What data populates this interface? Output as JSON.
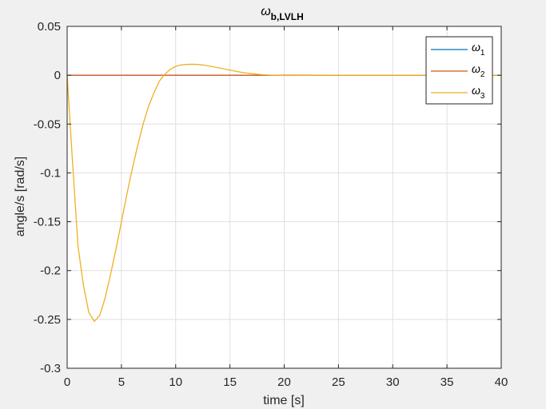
{
  "chart_data": {
    "type": "line",
    "title": "ω",
    "title_subscript": "b,LVLH",
    "xlabel": "time [s]",
    "ylabel": "angle/s [rad/s]",
    "xlim": [
      0,
      40
    ],
    "ylim": [
      -0.3,
      0.05
    ],
    "xticks": [
      0,
      5,
      10,
      15,
      20,
      25,
      30,
      35,
      40
    ],
    "xtick_labels": [
      "0",
      "5",
      "10",
      "15",
      "20",
      "25",
      "30",
      "35",
      "40"
    ],
    "yticks": [
      0.05,
      0,
      -0.05,
      -0.1,
      -0.15,
      -0.2,
      -0.25,
      -0.3
    ],
    "ytick_labels": [
      "0.05",
      "0",
      "-0.05",
      "-0.1",
      "-0.15",
      "-0.2",
      "-0.25",
      "-0.3"
    ],
    "grid": true,
    "legend_position": "top-right",
    "series": [
      {
        "name": "ω",
        "subscript": "1",
        "color": "#0072BD",
        "x": [
          0,
          40
        ],
        "y": [
          0,
          0
        ]
      },
      {
        "name": "ω",
        "subscript": "2",
        "color": "#D95319",
        "x": [
          0,
          40
        ],
        "y": [
          0,
          0
        ]
      },
      {
        "name": "ω",
        "subscript": "3",
        "color": "#EDB120",
        "x": [
          0,
          0.5,
          1.0,
          1.5,
          2.0,
          2.5,
          3.0,
          3.5,
          4.0,
          4.5,
          5.0,
          5.5,
          6.0,
          6.5,
          7.0,
          7.5,
          8.0,
          8.5,
          9.0,
          9.5,
          10.0,
          10.5,
          11.0,
          11.5,
          12.0,
          12.5,
          13.0,
          14.0,
          15.0,
          16.0,
          17.0,
          18.0,
          19.0,
          20.0,
          22.0,
          25.0,
          30.0,
          35.0,
          40.0
        ],
        "y": [
          0,
          -0.09,
          -0.175,
          -0.215,
          -0.243,
          -0.252,
          -0.246,
          -0.228,
          -0.204,
          -0.178,
          -0.15,
          -0.122,
          -0.096,
          -0.072,
          -0.05,
          -0.032,
          -0.018,
          -0.006,
          0.001,
          0.006,
          0.009,
          0.0105,
          0.011,
          0.0112,
          0.011,
          0.0105,
          0.0095,
          0.0075,
          0.0052,
          0.0031,
          0.0015,
          0.0005,
          0.0,
          -0.0003,
          -0.0002,
          0.0,
          0.0,
          0.0,
          0.0
        ]
      }
    ]
  }
}
